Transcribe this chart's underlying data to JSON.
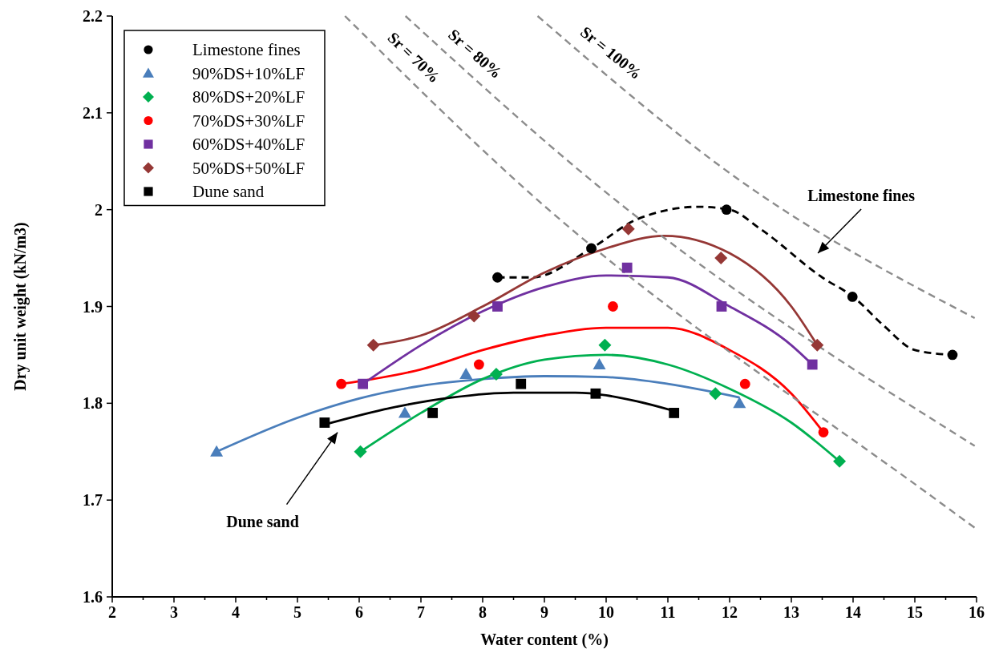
{
  "chart_data": {
    "type": "scatter",
    "xlabel": "Water content (%)",
    "ylabel": "Dry unit weight (kN/m3)",
    "xlim": [
      2,
      16
    ],
    "ylim": [
      1.6,
      2.2
    ],
    "xticks": [
      2,
      {
        "value": 2.5,
        "label": null
      },
      3,
      {
        "value": 3.5,
        "label": null
      },
      4,
      {
        "value": 4.5,
        "label": null
      },
      5,
      {
        "value": 5.5,
        "label": null
      },
      6,
      {
        "value": 6.5,
        "label": null
      },
      7,
      {
        "value": 7.5,
        "label": null
      },
      8,
      {
        "value": 8.5,
        "label": null
      },
      9,
      {
        "value": 9.5,
        "label": null
      },
      10,
      {
        "value": 10.5,
        "label": null
      },
      11,
      {
        "value": 11.5,
        "label": null
      },
      12,
      {
        "value": 12.5,
        "label": null
      },
      13,
      {
        "value": 13.5,
        "label": null
      },
      14,
      {
        "value": 14.5,
        "label": null
      },
      15,
      {
        "value": 15.5,
        "label": null
      },
      16
    ],
    "yticks": [
      1.6,
      1.7,
      1.8,
      1.9,
      2,
      2.1,
      2.2
    ],
    "grid": false,
    "legend": "top left",
    "series": [
      {
        "name": "Limestone fines",
        "marker": "circle",
        "color": "#000000",
        "x": [
          8.24,
          9.76,
          11.95,
          13.99,
          15.61
        ],
        "values": [
          1.93,
          1.96,
          2.0,
          1.91,
          1.85
        ]
      },
      {
        "name": "90%DS+10%LF",
        "marker": "triangle",
        "color": "#4a7ebb",
        "x": [
          3.69,
          6.74,
          7.73,
          9.89,
          12.16
        ],
        "values": [
          1.75,
          1.79,
          1.83,
          1.84,
          1.8
        ]
      },
      {
        "name": "80%DS+20%LF",
        "marker": "diamond",
        "color": "#00b050",
        "x": [
          6.02,
          8.22,
          9.98,
          11.77,
          13.78
        ],
        "values": [
          1.75,
          1.83,
          1.86,
          1.81,
          1.74
        ]
      },
      {
        "name": "70%DS+30%LF",
        "marker": "circle",
        "color": "#ff0000",
        "x": [
          5.71,
          7.94,
          10.11,
          12.25,
          13.52
        ],
        "values": [
          1.82,
          1.84,
          1.9,
          1.82,
          1.77
        ]
      },
      {
        "name": "60%DS+40%LF",
        "marker": "square",
        "color": "#7030a0",
        "x": [
          6.06,
          8.24,
          10.34,
          11.87,
          13.34
        ],
        "values": [
          1.82,
          1.9,
          1.94,
          1.9,
          1.84
        ]
      },
      {
        "name": "50%DS+50%LF",
        "marker": "diamond",
        "color": "#953735",
        "x": [
          6.23,
          7.86,
          10.36,
          11.86,
          13.42
        ],
        "values": [
          1.86,
          1.89,
          1.98,
          1.95,
          1.86
        ]
      },
      {
        "name": "Dune sand",
        "marker": "square",
        "color": "#000000",
        "x": [
          5.44,
          7.19,
          8.62,
          9.83,
          11.1
        ],
        "values": [
          1.78,
          1.79,
          1.82,
          1.81,
          1.79
        ]
      },
      {
        "type": "line",
        "line_style": "dashed",
        "color": "#000000",
        "x": [
          8.24,
          8.8,
          9.76,
          10.5,
          11.5,
          12,
          12.5,
          13.5,
          14,
          14.5,
          15,
          15.6
        ],
        "values": [
          1.93,
          1.93,
          1.96,
          1.99,
          2.003,
          2.0,
          1.98,
          1.93,
          1.91,
          1.88,
          1.855,
          1.85
        ]
      },
      {
        "type": "line",
        "line_style": "solid",
        "color": "#4a7ebb",
        "x": [
          3.69,
          5,
          6,
          7,
          8,
          9,
          10,
          11,
          12.16
        ],
        "values": [
          1.75,
          1.785,
          1.805,
          1.818,
          1.825,
          1.828,
          1.827,
          1.82,
          1.806
        ]
      },
      {
        "type": "line",
        "line_style": "solid",
        "color": "#00b050",
        "x": [
          6.02,
          7,
          8,
          9,
          10,
          11,
          12,
          13,
          13.78
        ],
        "values": [
          1.75,
          1.79,
          1.825,
          1.845,
          1.85,
          1.84,
          1.815,
          1.78,
          1.74
        ]
      },
      {
        "type": "line",
        "line_style": "solid",
        "color": "#ff0000",
        "x": [
          5.71,
          7,
          8,
          9,
          10,
          11,
          12,
          13,
          13.52
        ],
        "values": [
          1.82,
          1.835,
          1.855,
          1.87,
          1.878,
          1.878,
          1.855,
          1.81,
          1.77
        ]
      },
      {
        "type": "line",
        "line_style": "solid",
        "color": "#7030a0",
        "x": [
          6.06,
          7,
          8,
          9,
          10,
          11,
          12,
          13,
          13.34
        ],
        "values": [
          1.82,
          1.86,
          1.895,
          1.92,
          1.932,
          1.93,
          1.9,
          1.86,
          1.84
        ]
      },
      {
        "type": "line",
        "line_style": "solid",
        "color": "#953735",
        "x": [
          6.23,
          7,
          8,
          9,
          10,
          10.94,
          12,
          13,
          13.42
        ],
        "values": [
          1.86,
          1.87,
          1.9,
          1.935,
          1.96,
          1.973,
          1.955,
          1.9,
          1.86
        ]
      },
      {
        "type": "line",
        "line_style": "solid",
        "color": "#000000",
        "x": [
          5.44,
          6.5,
          7.5,
          8.5,
          9.5,
          10.5,
          11.1
        ],
        "values": [
          1.778,
          1.795,
          1.806,
          1.811,
          1.811,
          1.802,
          1.792
        ]
      },
      {
        "name": "Sr = 70%",
        "type": "line",
        "line_style": "dashed",
        "color": "#8c8c8c",
        "x": [
          5.77,
          8.66,
          15.4,
          16
        ],
        "values": [
          2.2,
          2.023,
          1.698,
          1.67
        ]
      },
      {
        "name": "Sr = 80%",
        "type": "line",
        "line_style": "dashed",
        "color": "#8c8c8c",
        "x": [
          6.75,
          9.84,
          15.97
        ],
        "values": [
          2.2,
          2.026,
          1.756
        ]
      },
      {
        "name": "Sr = 100%",
        "type": "line",
        "line_style": "dashed",
        "color": "#8c8c8c",
        "x": [
          8.89,
          12.26,
          15.97
        ],
        "values": [
          2.2,
          2.026,
          1.888
        ]
      }
    ],
    "annotations": [
      "Limestone fines",
      "Dune sand"
    ]
  }
}
